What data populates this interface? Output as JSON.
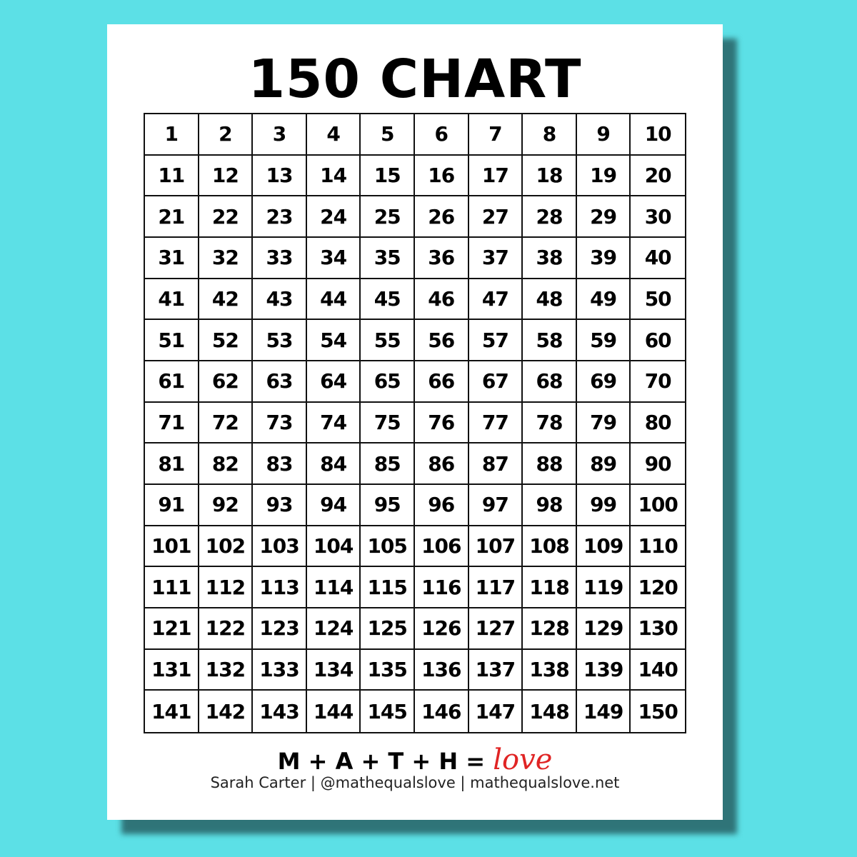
{
  "title": "150 CHART",
  "grid": {
    "rows": [
      [
        1,
        2,
        3,
        4,
        5,
        6,
        7,
        8,
        9,
        10
      ],
      [
        11,
        12,
        13,
        14,
        15,
        16,
        17,
        18,
        19,
        20
      ],
      [
        21,
        22,
        23,
        24,
        25,
        26,
        27,
        28,
        29,
        30
      ],
      [
        31,
        32,
        33,
        34,
        35,
        36,
        37,
        38,
        39,
        40
      ],
      [
        41,
        42,
        43,
        44,
        45,
        46,
        47,
        48,
        49,
        50
      ],
      [
        51,
        52,
        53,
        54,
        55,
        56,
        57,
        58,
        59,
        60
      ],
      [
        61,
        62,
        63,
        64,
        65,
        66,
        67,
        68,
        69,
        70
      ],
      [
        71,
        72,
        73,
        74,
        75,
        76,
        77,
        78,
        79,
        80
      ],
      [
        81,
        82,
        83,
        84,
        85,
        86,
        87,
        88,
        89,
        90
      ],
      [
        91,
        92,
        93,
        94,
        95,
        96,
        97,
        98,
        99,
        100
      ],
      [
        101,
        102,
        103,
        104,
        105,
        106,
        107,
        108,
        109,
        110
      ],
      [
        111,
        112,
        113,
        114,
        115,
        116,
        117,
        118,
        119,
        120
      ],
      [
        121,
        122,
        123,
        124,
        125,
        126,
        127,
        128,
        129,
        130
      ],
      [
        131,
        132,
        133,
        134,
        135,
        136,
        137,
        138,
        139,
        140
      ],
      [
        141,
        142,
        143,
        144,
        145,
        146,
        147,
        148,
        149,
        150
      ]
    ]
  },
  "footer": {
    "logo_text": "M + A + T + H =",
    "logo_love": "love",
    "credit": "Sarah Carter  |  @mathequalslove  |  mathequalslove.net"
  },
  "colors": {
    "background": "#5ce0e6",
    "shadow": "#2f7478",
    "love": "#e02424"
  }
}
